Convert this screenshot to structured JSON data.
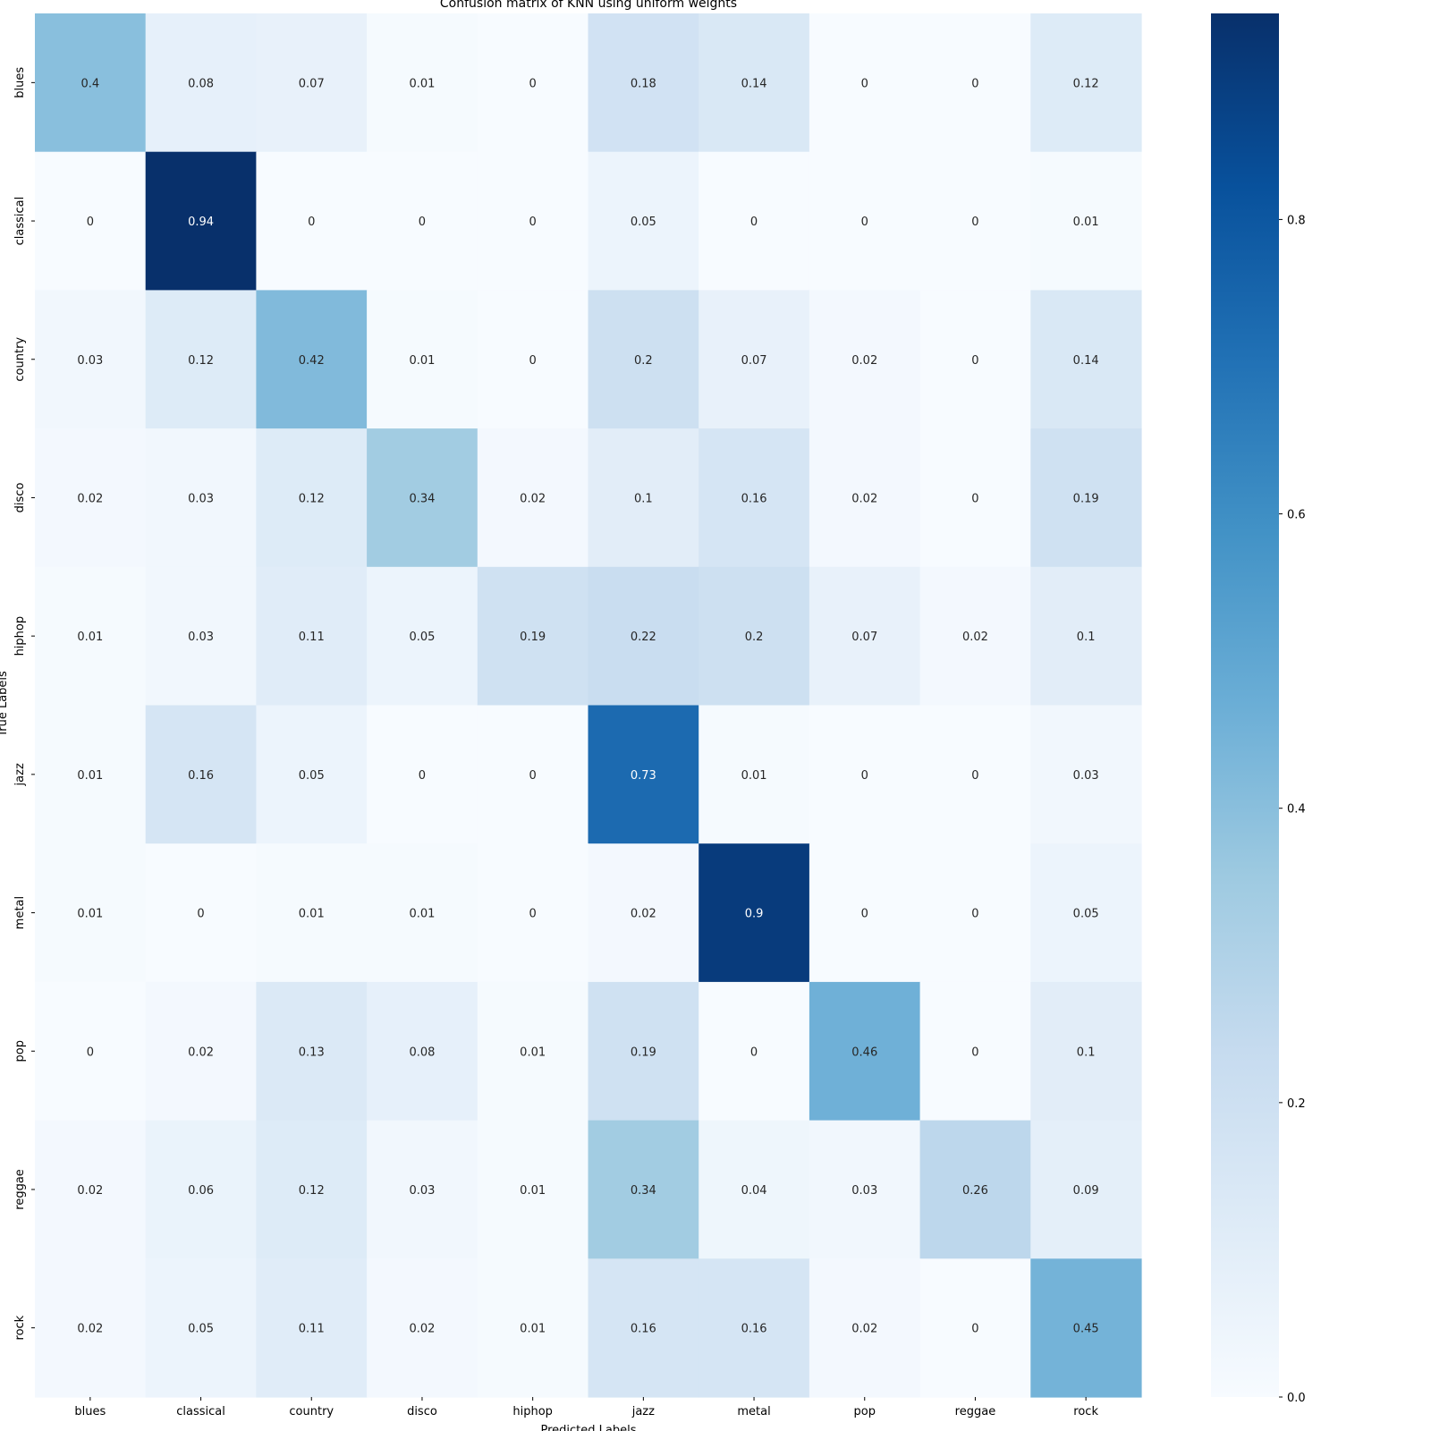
{
  "chart_data": {
    "type": "heatmap",
    "title": "Confusion matrix of KNN using uniform weights",
    "xlabel": "Predicted Labels",
    "ylabel": "True Labels",
    "x_categories": [
      "blues",
      "classical",
      "country",
      "disco",
      "hiphop",
      "jazz",
      "metal",
      "pop",
      "reggae",
      "rock"
    ],
    "y_categories": [
      "blues",
      "classical",
      "country",
      "disco",
      "hiphop",
      "jazz",
      "metal",
      "pop",
      "reggae",
      "rock"
    ],
    "values": [
      [
        0.4,
        0.08,
        0.07,
        0.01,
        0,
        0.18,
        0.14,
        0,
        0,
        0.12
      ],
      [
        0,
        0.94,
        0,
        0,
        0,
        0.05,
        0,
        0,
        0,
        0.01
      ],
      [
        0.03,
        0.12,
        0.42,
        0.01,
        0,
        0.2,
        0.07,
        0.02,
        0,
        0.14
      ],
      [
        0.02,
        0.03,
        0.12,
        0.34,
        0.02,
        0.1,
        0.16,
        0.02,
        0,
        0.19
      ],
      [
        0.01,
        0.03,
        0.11,
        0.05,
        0.19,
        0.22,
        0.2,
        0.07,
        0.02,
        0.1
      ],
      [
        0.01,
        0.16,
        0.05,
        0,
        0,
        0.73,
        0.01,
        0,
        0,
        0.03
      ],
      [
        0.01,
        0,
        0.01,
        0.01,
        0,
        0.02,
        0.9,
        0,
        0,
        0.05
      ],
      [
        0,
        0.02,
        0.13,
        0.08,
        0.01,
        0.19,
        0,
        0.46,
        0,
        0.1
      ],
      [
        0.02,
        0.06,
        0.12,
        0.03,
        0.01,
        0.34,
        0.04,
        0.03,
        0.26,
        0.09
      ],
      [
        0.02,
        0.05,
        0.11,
        0.02,
        0.01,
        0.16,
        0.16,
        0.02,
        0,
        0.45
      ]
    ],
    "colormap": "Blues",
    "vmin": 0,
    "vmax": 0.94,
    "colorbar_ticks": [
      0.0,
      0.2,
      0.4,
      0.6,
      0.8
    ],
    "colorbar_tick_labels": [
      "0.0",
      "0.2",
      "0.4",
      "0.6",
      "0.8"
    ],
    "annotated": true,
    "grid": false,
    "legend": "colorbar-right"
  }
}
